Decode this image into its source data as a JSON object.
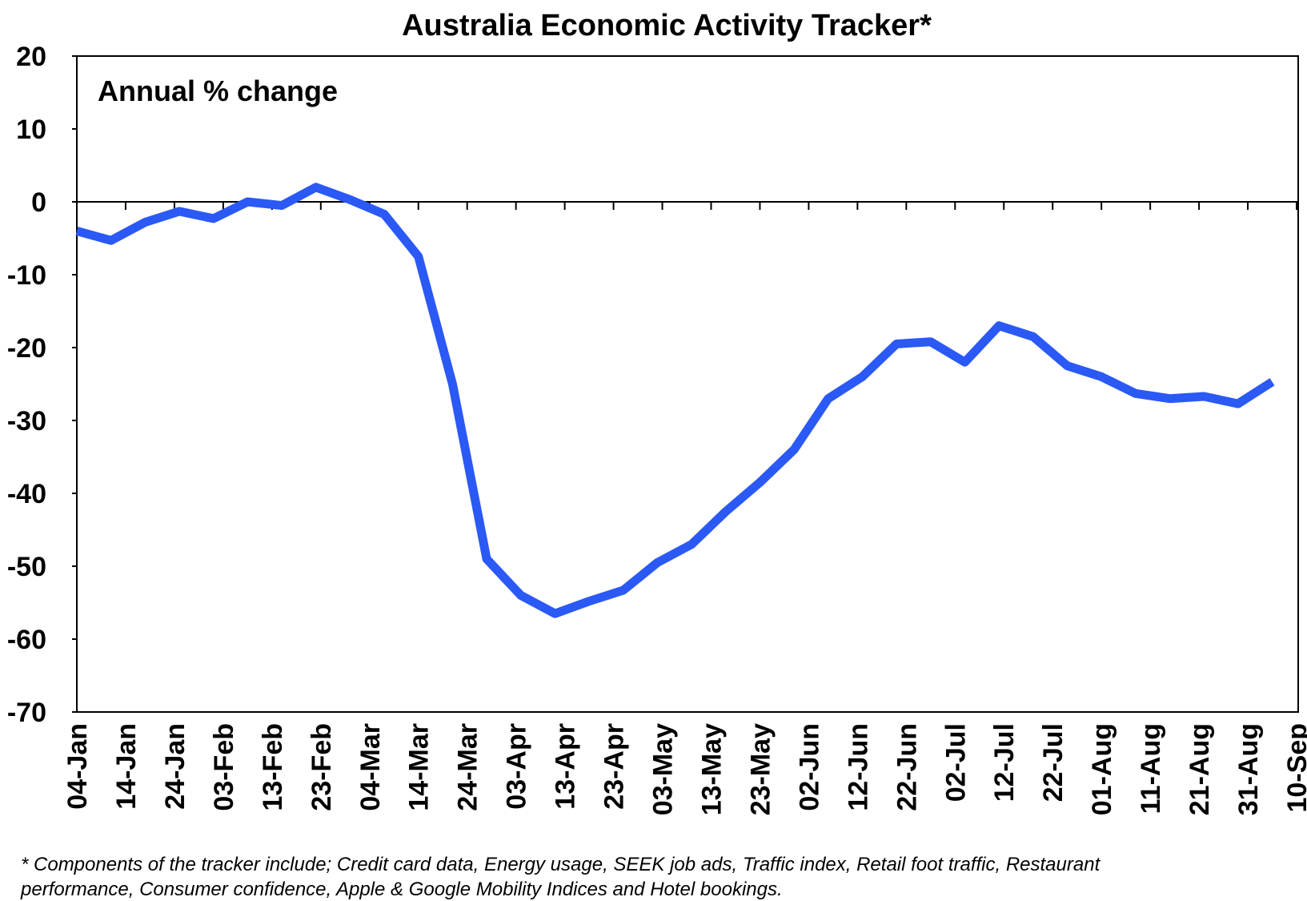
{
  "chart_data": {
    "type": "line",
    "title": "Australia Economic Activity Tracker*",
    "annotation": "Annual % change",
    "footnote": [
      "* Components of the tracker include; Credit card data, Energy usage, SEEK job ads, Traffic index, Retail foot traffic, Restaurant",
      "performance, Consumer confidence, Apple & Google Mobility Indices and Hotel bookings."
    ],
    "x": [
      "04-Jan",
      "11-Jan",
      "18-Jan",
      "25-Jan",
      "01-Feb",
      "08-Feb",
      "15-Feb",
      "22-Feb",
      "29-Feb",
      "07-Mar",
      "14-Mar",
      "21-Mar",
      "28-Mar",
      "04-Apr",
      "11-Apr",
      "18-Apr",
      "25-Apr",
      "02-May",
      "09-May",
      "16-May",
      "23-May",
      "30-May",
      "06-Jun",
      "13-Jun",
      "20-Jun",
      "27-Jun",
      "04-Jul",
      "11-Jul",
      "18-Jul",
      "25-Jul",
      "01-Aug",
      "08-Aug",
      "15-Aug",
      "22-Aug",
      "29-Aug",
      "05-Sep"
    ],
    "series": [
      {
        "name": "Activity tracker",
        "color": "#2b59f5",
        "values": [
          -4,
          -5.3,
          -2.8,
          -1.3,
          -2.3,
          0,
          -0.5,
          2,
          0.3,
          -1.7,
          -7.5,
          -25,
          -49,
          -54,
          -56.5,
          -54.8,
          -53.3,
          -49.5,
          -47,
          -42.5,
          -38.5,
          -34,
          -27,
          -24,
          -19.5,
          -19.2,
          -22,
          -17,
          -18.5,
          -22.5,
          -24,
          -26.3,
          -27,
          -26.7,
          -27.7,
          -24.7
        ]
      }
    ],
    "xticks": [
      "04-Jan",
      "14-Jan",
      "24-Jan",
      "03-Feb",
      "13-Feb",
      "23-Feb",
      "04-Mar",
      "14-Mar",
      "24-Mar",
      "03-Apr",
      "13-Apr",
      "23-Apr",
      "03-May",
      "13-May",
      "23-May",
      "02-Jun",
      "12-Jun",
      "22-Jun",
      "02-Jul",
      "12-Jul",
      "22-Jul",
      "01-Aug",
      "11-Aug",
      "21-Aug",
      "31-Aug",
      "10-Sep"
    ],
    "ylim": [
      -70,
      20
    ],
    "yticks": [
      -70,
      -60,
      -50,
      -40,
      -30,
      -20,
      -10,
      0,
      10,
      20
    ]
  }
}
